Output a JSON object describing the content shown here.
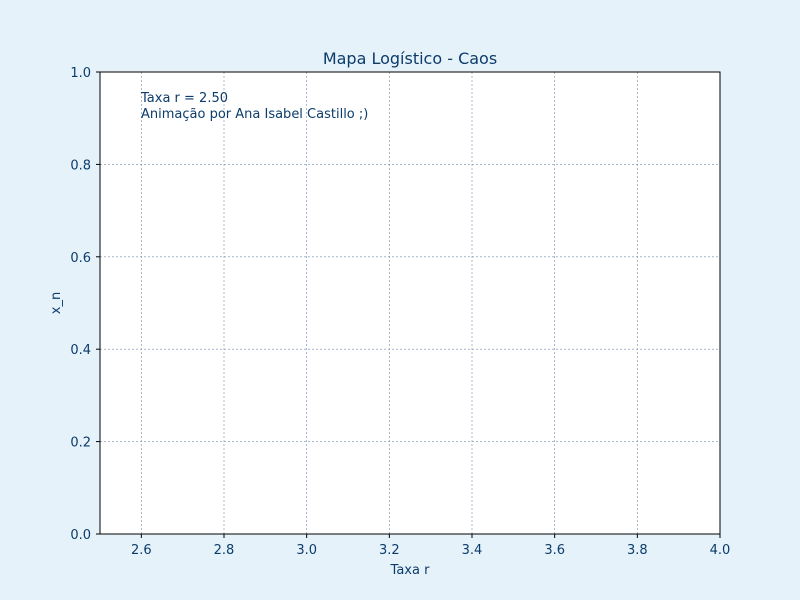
{
  "chart_data": {
    "type": "scatter",
    "title": "Mapa Logístico - Caos",
    "xlabel": "Taxa r",
    "ylabel": "x_n",
    "xlim": [
      2.5,
      4.0
    ],
    "ylim": [
      0.0,
      1.0
    ],
    "xticks": [
      2.6,
      2.8,
      3.0,
      3.2,
      3.4,
      3.6,
      3.8,
      4.0
    ],
    "xtick_labels": [
      "2.6",
      "2.8",
      "3.0",
      "3.2",
      "3.4",
      "3.6",
      "3.8",
      "4.0"
    ],
    "yticks": [
      0.0,
      0.2,
      0.4,
      0.6,
      0.8,
      1.0
    ],
    "ytick_labels": [
      "0.0",
      "0.2",
      "0.4",
      "0.6",
      "0.8",
      "1.0"
    ],
    "grid": true,
    "series": [],
    "annotations": {
      "rate_text": "Taxa r = 2.50",
      "credit_text": "Animação por Ana Isabel Castillo ;)"
    }
  },
  "colors": {
    "figure_background": "#e6f2fa",
    "axes_background": "#ffffff",
    "text": "#0b3c6b",
    "grid": "#6f8fb0"
  }
}
